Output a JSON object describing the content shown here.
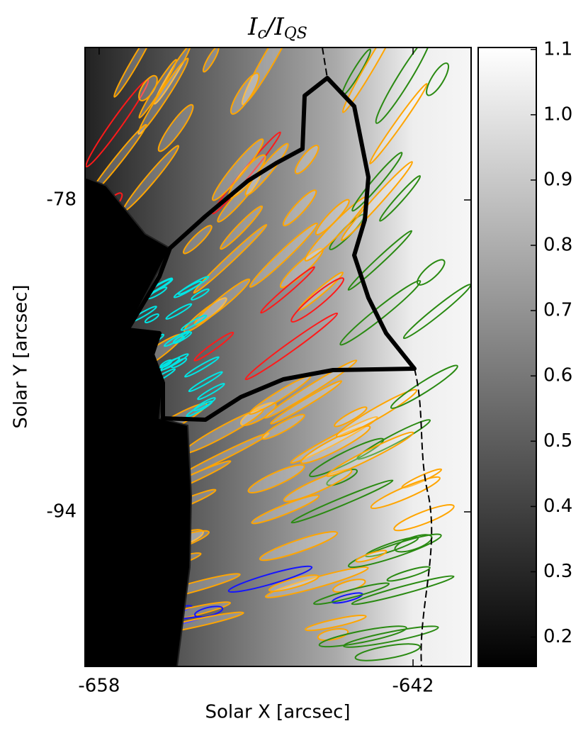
{
  "chart_data": {
    "type": "heatmap",
    "title": [
      "I",
      "c",
      "/I",
      "QS"
    ],
    "xlabel": "Solar X [arcsec]",
    "ylabel": "Solar Y [arcsec]",
    "xlim": [
      -658.72,
      -639.04
    ],
    "xticks": [
      -658,
      -642
    ],
    "ylim": [
      -101.93,
      -70.18
    ],
    "yticks": [
      -94,
      -78
    ],
    "colormap": "gray",
    "clim": [
      0.155,
      1.103
    ],
    "cticks": [
      0.2,
      0.3,
      0.4,
      0.5,
      0.6,
      0.7,
      0.8,
      0.9,
      {
        "value": 1.0,
        "label": "1.0"
      },
      1.1
    ]
  }
}
